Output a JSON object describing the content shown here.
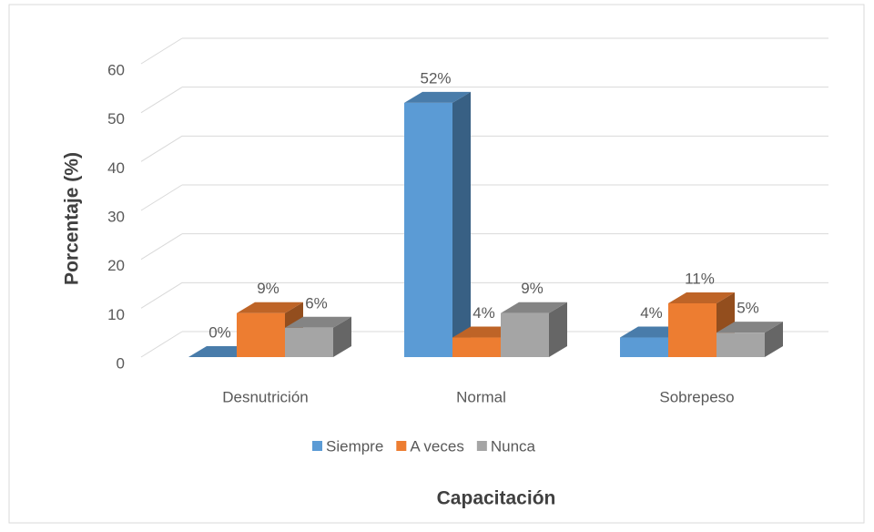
{
  "chart_data": {
    "type": "bar3d",
    "categories": [
      "Desnutrición",
      "Normal",
      "Sobrepeso"
    ],
    "series": [
      {
        "name": "Siempre",
        "color": "#5b9bd5",
        "values": [
          0,
          52,
          4
        ],
        "value_labels": [
          "0%",
          "52%",
          "4%"
        ]
      },
      {
        "name": "A veces",
        "color": "#ed7d31",
        "values": [
          9,
          4,
          11
        ],
        "value_labels": [
          "9%",
          "4%",
          "11%"
        ]
      },
      {
        "name": "Nunca",
        "color": "#a5a5a5",
        "values": [
          6,
          9,
          5
        ],
        "value_labels": [
          "6%",
          "9%",
          "5%"
        ]
      }
    ],
    "ylim": [
      0,
      60
    ],
    "yticks": [
      0,
      10,
      20,
      30,
      40,
      50,
      60
    ],
    "grid": true,
    "xlabel": "Capacitación",
    "ylabel": "Porcentaje (%)",
    "legend": "bottom"
  }
}
